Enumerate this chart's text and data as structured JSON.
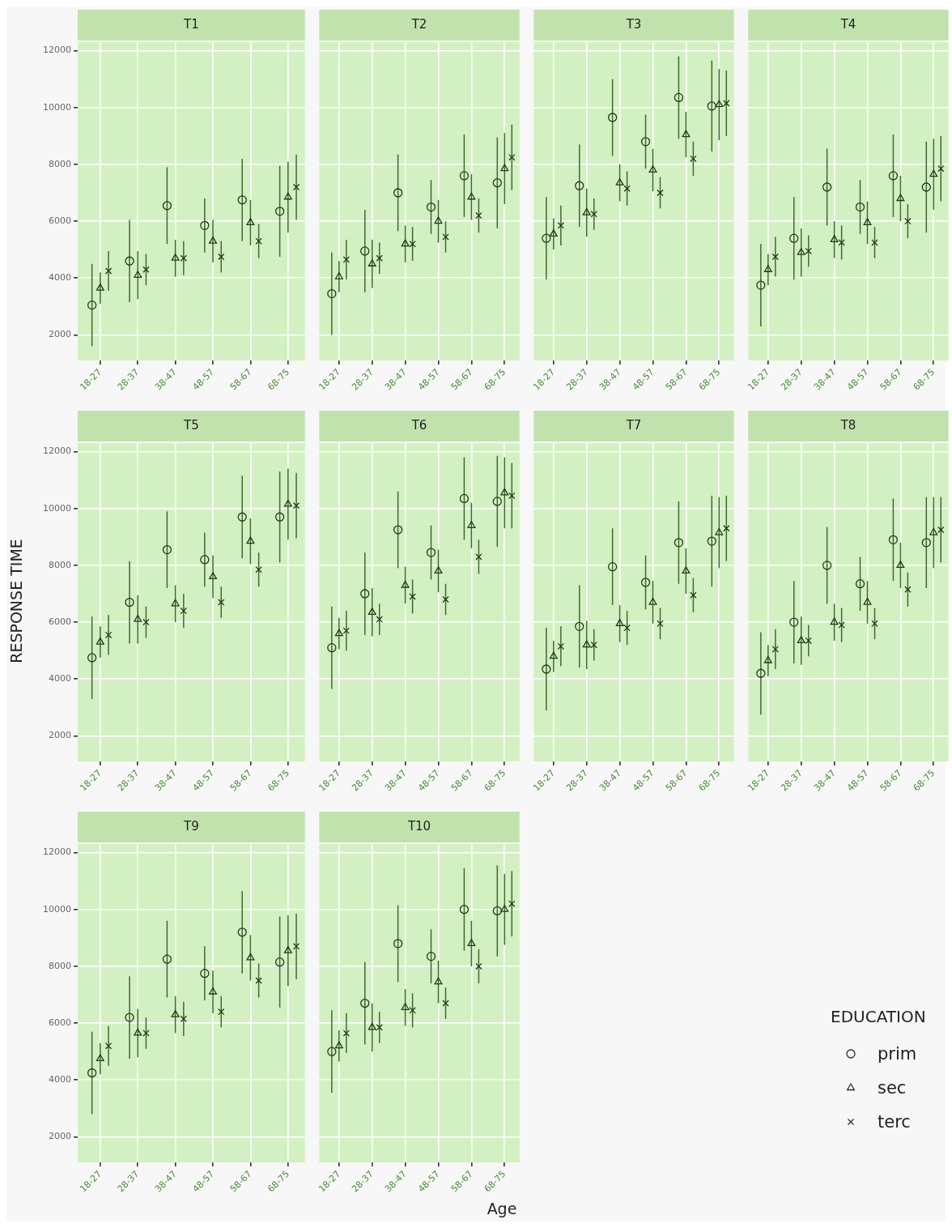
{
  "chart_data": [
    {
      "type": "scatter",
      "title": "T1",
      "legend": "right",
      "legend_title": "EDUCATION",
      "categories": [
        "18-27",
        "28-37",
        "38-47",
        "48-57",
        "58-67",
        "68-75"
      ],
      "ylim": [
        1100,
        12300
      ],
      "yticks": [
        2000,
        4000,
        6000,
        8000,
        10000,
        12000
      ],
      "grid": true,
      "series": [
        {
          "name": "prim",
          "color": "#1e3a14",
          "marker": "circle",
          "values": [
            3050,
            4600,
            6550,
            5850,
            6750,
            6350
          ],
          "errors": [
            1450,
            1450,
            1350,
            950,
            1450,
            1600
          ]
        },
        {
          "name": "sec",
          "color": "#1e3a14",
          "marker": "triangle",
          "values": [
            3650,
            4100,
            4700,
            5300,
            5950,
            6850
          ],
          "errors": [
            550,
            850,
            650,
            750,
            800,
            1250
          ]
        },
        {
          "name": "terc",
          "color": "#1e3a14",
          "marker": "cross",
          "values": [
            4250,
            4300,
            4700,
            4750,
            5300,
            7200
          ],
          "errors": [
            700,
            550,
            600,
            550,
            600,
            1150
          ]
        }
      ]
    },
    {
      "type": "scatter",
      "title": "T2",
      "categories": [
        "18-27",
        "28-37",
        "38-47",
        "48-57",
        "58-67",
        "68-75"
      ],
      "ylim": [
        1100,
        12300
      ],
      "yticks": [
        2000,
        4000,
        6000,
        8000,
        10000,
        12000
      ],
      "grid": true,
      "tick_labels": "x",
      "series": [
        {
          "color": "#1e3a14",
          "marker": "circle",
          "values": [
            3450,
            4950,
            7000,
            6500,
            7600,
            7350
          ],
          "errors": [
            1450,
            1450,
            1350,
            950,
            1450,
            1600
          ]
        },
        {
          "color": "#1e3a14",
          "marker": "triangle",
          "values": [
            4050,
            4500,
            5200,
            6000,
            6850,
            7850
          ],
          "errors": [
            550,
            850,
            650,
            750,
            800,
            1250
          ]
        },
        {
          "color": "#1e3a14",
          "marker": "cross",
          "values": [
            4650,
            4700,
            5200,
            5450,
            6200,
            8250
          ],
          "errors": [
            700,
            550,
            600,
            550,
            600,
            1150
          ]
        }
      ]
    },
    {
      "type": "scatter",
      "title": "T3",
      "categories": [
        "18-27",
        "28-37",
        "38-47",
        "48-57",
        "58-67",
        "68-75"
      ],
      "ylim": [
        1100,
        12300
      ],
      "yticks": [
        2000,
        4000,
        6000,
        8000,
        10000,
        12000
      ],
      "grid": true,
      "tick_labels": "x",
      "series": [
        {
          "color": "#1e3a14",
          "marker": "circle",
          "values": [
            5400,
            7250,
            9650,
            8800,
            10350,
            10050
          ],
          "errors": [
            1450,
            1450,
            1350,
            950,
            1450,
            1600
          ]
        },
        {
          "color": "#1e3a14",
          "marker": "triangle",
          "values": [
            5550,
            6300,
            7350,
            7800,
            9050,
            10100
          ],
          "errors": [
            550,
            850,
            650,
            750,
            800,
            1250
          ]
        },
        {
          "color": "#1e3a14",
          "marker": "cross",
          "values": [
            5850,
            6250,
            7150,
            7000,
            8200,
            10150
          ],
          "errors": [
            700,
            550,
            600,
            550,
            600,
            1150
          ]
        }
      ]
    },
    {
      "type": "scatter",
      "title": "T4",
      "categories": [
        "18-27",
        "28-37",
        "38-47",
        "48-57",
        "58-67",
        "68-75"
      ],
      "ylim": [
        1100,
        12300
      ],
      "yticks": [
        2000,
        4000,
        6000,
        8000,
        10000,
        12000
      ],
      "grid": true,
      "tick_labels": "x",
      "series": [
        {
          "color": "#1e3a14",
          "marker": "circle",
          "values": [
            3750,
            5400,
            7200,
            6500,
            7600,
            7200
          ],
          "errors": [
            1450,
            1450,
            1350,
            950,
            1450,
            1600
          ]
        },
        {
          "color": "#1e3a14",
          "marker": "triangle",
          "values": [
            4300,
            4900,
            5350,
            5950,
            6800,
            7650
          ],
          "errors": [
            550,
            850,
            650,
            750,
            800,
            1250
          ]
        },
        {
          "color": "#1e3a14",
          "marker": "cross",
          "values": [
            4750,
            4950,
            5250,
            5250,
            6000,
            7850
          ],
          "errors": [
            700,
            550,
            600,
            550,
            600,
            1150
          ]
        }
      ]
    },
    {
      "type": "scatter",
      "title": "T5",
      "ylabel": "RESPONSE TIME",
      "categories": [
        "18-27",
        "28-37",
        "38-47",
        "48-57",
        "58-67",
        "68-75"
      ],
      "ylim": [
        1100,
        12300
      ],
      "yticks": [
        2000,
        4000,
        6000,
        8000,
        10000,
        12000
      ],
      "grid": true,
      "series": [
        {
          "color": "#1e3a14",
          "marker": "circle",
          "values": [
            4750,
            6700,
            8550,
            8200,
            9700,
            9700
          ],
          "errors": [
            1450,
            1450,
            1350,
            950,
            1450,
            1600
          ]
        },
        {
          "color": "#1e3a14",
          "marker": "triangle",
          "values": [
            5300,
            6100,
            6650,
            7600,
            8850,
            10150
          ],
          "errors": [
            550,
            850,
            650,
            750,
            800,
            1250
          ]
        },
        {
          "color": "#1e3a14",
          "marker": "cross",
          "values": [
            5550,
            6000,
            6400,
            6700,
            7850,
            10100
          ],
          "errors": [
            700,
            550,
            600,
            550,
            600,
            1150
          ]
        }
      ]
    },
    {
      "type": "scatter",
      "title": "T6",
      "categories": [
        "18-27",
        "28-37",
        "38-47",
        "48-57",
        "58-67",
        "68-75"
      ],
      "ylim": [
        1100,
        12300
      ],
      "yticks": [
        2000,
        4000,
        6000,
        8000,
        10000,
        12000
      ],
      "grid": true,
      "tick_labels": "x",
      "series": [
        {
          "color": "#1e3a14",
          "marker": "circle",
          "values": [
            5100,
            7000,
            9250,
            8450,
            10350,
            10250
          ],
          "errors": [
            1450,
            1450,
            1350,
            950,
            1450,
            1600
          ]
        },
        {
          "color": "#1e3a14",
          "marker": "triangle",
          "values": [
            5600,
            6350,
            7300,
            7800,
            9400,
            10550
          ],
          "errors": [
            550,
            850,
            650,
            750,
            800,
            1250
          ]
        },
        {
          "color": "#1e3a14",
          "marker": "cross",
          "values": [
            5700,
            6100,
            6900,
            6800,
            8300,
            10450
          ],
          "errors": [
            700,
            550,
            600,
            550,
            600,
            1150
          ]
        }
      ]
    },
    {
      "type": "scatter",
      "title": "T7",
      "categories": [
        "18-27",
        "28-37",
        "38-47",
        "48-57",
        "58-67",
        "68-75"
      ],
      "ylim": [
        1100,
        12300
      ],
      "yticks": [
        2000,
        4000,
        6000,
        8000,
        10000,
        12000
      ],
      "grid": true,
      "tick_labels": "x",
      "series": [
        {
          "color": "#1e3a14",
          "marker": "circle",
          "values": [
            4350,
            5850,
            7950,
            7400,
            8800,
            8850
          ],
          "errors": [
            1450,
            1450,
            1350,
            950,
            1450,
            1600
          ]
        },
        {
          "color": "#1e3a14",
          "marker": "triangle",
          "values": [
            4800,
            5200,
            5950,
            6700,
            7800,
            9150
          ],
          "errors": [
            550,
            850,
            650,
            750,
            800,
            1250
          ]
        },
        {
          "color": "#1e3a14",
          "marker": "cross",
          "values": [
            5150,
            5200,
            5800,
            5950,
            6950,
            9300
          ],
          "errors": [
            700,
            550,
            600,
            550,
            600,
            1150
          ]
        }
      ]
    },
    {
      "type": "scatter",
      "title": "T8",
      "categories": [
        "18-27",
        "28-37",
        "38-47",
        "48-57",
        "58-67",
        "68-75"
      ],
      "ylim": [
        1100,
        12300
      ],
      "yticks": [
        2000,
        4000,
        6000,
        8000,
        10000,
        12000
      ],
      "grid": true,
      "tick_labels": "x",
      "series": [
        {
          "color": "#1e3a14",
          "marker": "circle",
          "values": [
            4200,
            6000,
            8000,
            7350,
            8900,
            8800
          ],
          "errors": [
            1450,
            1450,
            1350,
            950,
            1450,
            1600
          ]
        },
        {
          "color": "#1e3a14",
          "marker": "triangle",
          "values": [
            4650,
            5350,
            6000,
            6700,
            8000,
            9150
          ],
          "errors": [
            550,
            850,
            650,
            750,
            800,
            1250
          ]
        },
        {
          "color": "#1e3a14",
          "marker": "cross",
          "values": [
            5050,
            5350,
            5900,
            5950,
            7150,
            9250
          ],
          "errors": [
            700,
            550,
            600,
            550,
            600,
            1150
          ]
        }
      ]
    },
    {
      "type": "scatter",
      "title": "T9",
      "categories": [
        "18-27",
        "28-37",
        "38-47",
        "48-57",
        "58-67",
        "68-75"
      ],
      "ylim": [
        1100,
        12300
      ],
      "yticks": [
        2000,
        4000,
        6000,
        8000,
        10000,
        12000
      ],
      "grid": true,
      "series": [
        {
          "color": "#1e3a14",
          "marker": "circle",
          "values": [
            4250,
            6200,
            8250,
            7750,
            9200,
            8150
          ],
          "errors": [
            1450,
            1450,
            1350,
            950,
            1450,
            1600
          ]
        },
        {
          "color": "#1e3a14",
          "marker": "triangle",
          "values": [
            4750,
            5650,
            6300,
            7100,
            8300,
            8550
          ],
          "errors": [
            550,
            850,
            650,
            750,
            800,
            1250
          ]
        },
        {
          "color": "#1e3a14",
          "marker": "cross",
          "values": [
            5200,
            5650,
            6150,
            6400,
            7500,
            8700
          ],
          "errors": [
            700,
            550,
            600,
            550,
            600,
            1150
          ]
        }
      ]
    },
    {
      "type": "scatter",
      "title": "T10",
      "xlabel": "Age",
      "categories": [
        "18-27",
        "28-37",
        "38-47",
        "48-57",
        "58-67",
        "68-75"
      ],
      "ylim": [
        1100,
        12300
      ],
      "yticks": [
        2000,
        4000,
        6000,
        8000,
        10000,
        12000
      ],
      "grid": true,
      "tick_labels": "x",
      "series": [
        {
          "color": "#1e3a14",
          "marker": "circle",
          "values": [
            5000,
            6700,
            8800,
            8350,
            10000,
            9950
          ],
          "errors": [
            1450,
            1450,
            1350,
            950,
            1450,
            1600
          ]
        },
        {
          "color": "#1e3a14",
          "marker": "triangle",
          "values": [
            5200,
            5850,
            6550,
            7450,
            8800,
            10000
          ],
          "errors": [
            550,
            850,
            650,
            750,
            800,
            1250
          ]
        },
        {
          "color": "#1e3a14",
          "marker": "cross",
          "values": [
            5650,
            5850,
            6450,
            6700,
            8000,
            10200
          ],
          "errors": [
            700,
            550,
            600,
            550,
            600,
            1150
          ]
        }
      ]
    }
  ]
}
